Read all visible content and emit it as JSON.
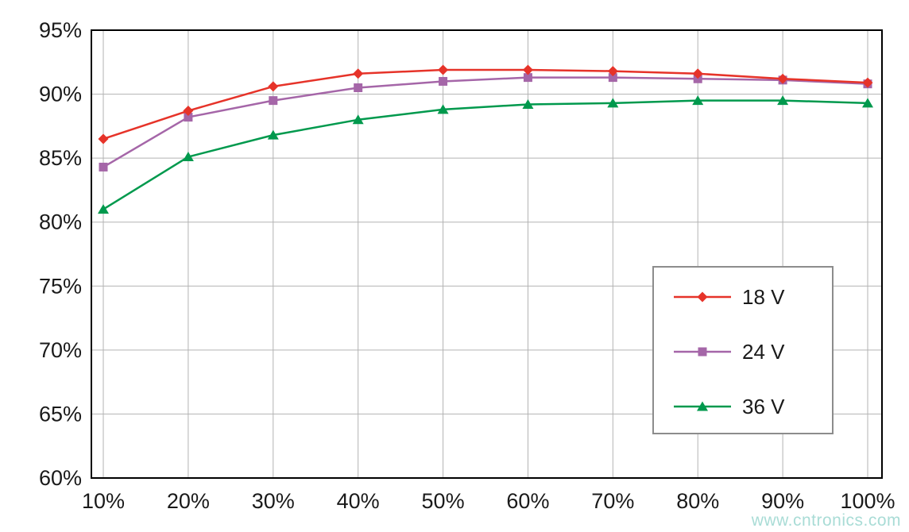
{
  "chart_data": {
    "type": "line",
    "title": "",
    "xlabel": "",
    "ylabel": "",
    "grid": true,
    "legend_position": "right-middle",
    "x": [
      10,
      20,
      30,
      40,
      50,
      60,
      70,
      80,
      90,
      100
    ],
    "x_tick_labels": [
      "10%",
      "20%",
      "30%",
      "40%",
      "50%",
      "60%",
      "70%",
      "80%",
      "90%",
      "100%"
    ],
    "xlim": [
      10,
      100
    ],
    "y_ticks": [
      60,
      65,
      70,
      75,
      80,
      85,
      90,
      95
    ],
    "y_tick_labels": [
      "60%",
      "65%",
      "70%",
      "75%",
      "80%",
      "85%",
      "90%",
      "95%"
    ],
    "ylim": [
      60,
      95
    ],
    "series": [
      {
        "name": "18 V",
        "color": "#e63329",
        "marker": "diamond",
        "values": [
          86.5,
          88.7,
          90.6,
          91.6,
          91.9,
          91.9,
          91.8,
          91.6,
          91.2,
          90.9
        ]
      },
      {
        "name": "24 V",
        "color": "#a566a8",
        "marker": "square",
        "values": [
          84.3,
          88.2,
          89.5,
          90.5,
          91.0,
          91.3,
          91.3,
          91.2,
          91.1,
          90.8
        ]
      },
      {
        "name": "36 V",
        "color": "#00994d",
        "marker": "triangle",
        "values": [
          81.0,
          85.1,
          86.8,
          88.0,
          88.8,
          89.2,
          89.3,
          89.5,
          89.5,
          89.3
        ]
      }
    ],
    "colors": {
      "grid": "#b3b3b3",
      "border": "#000000",
      "text": "#1a1a1a",
      "legend_border": "#8c8c8c",
      "background": "#ffffff"
    }
  },
  "watermark": {
    "text": "www.cntronics.com"
  }
}
